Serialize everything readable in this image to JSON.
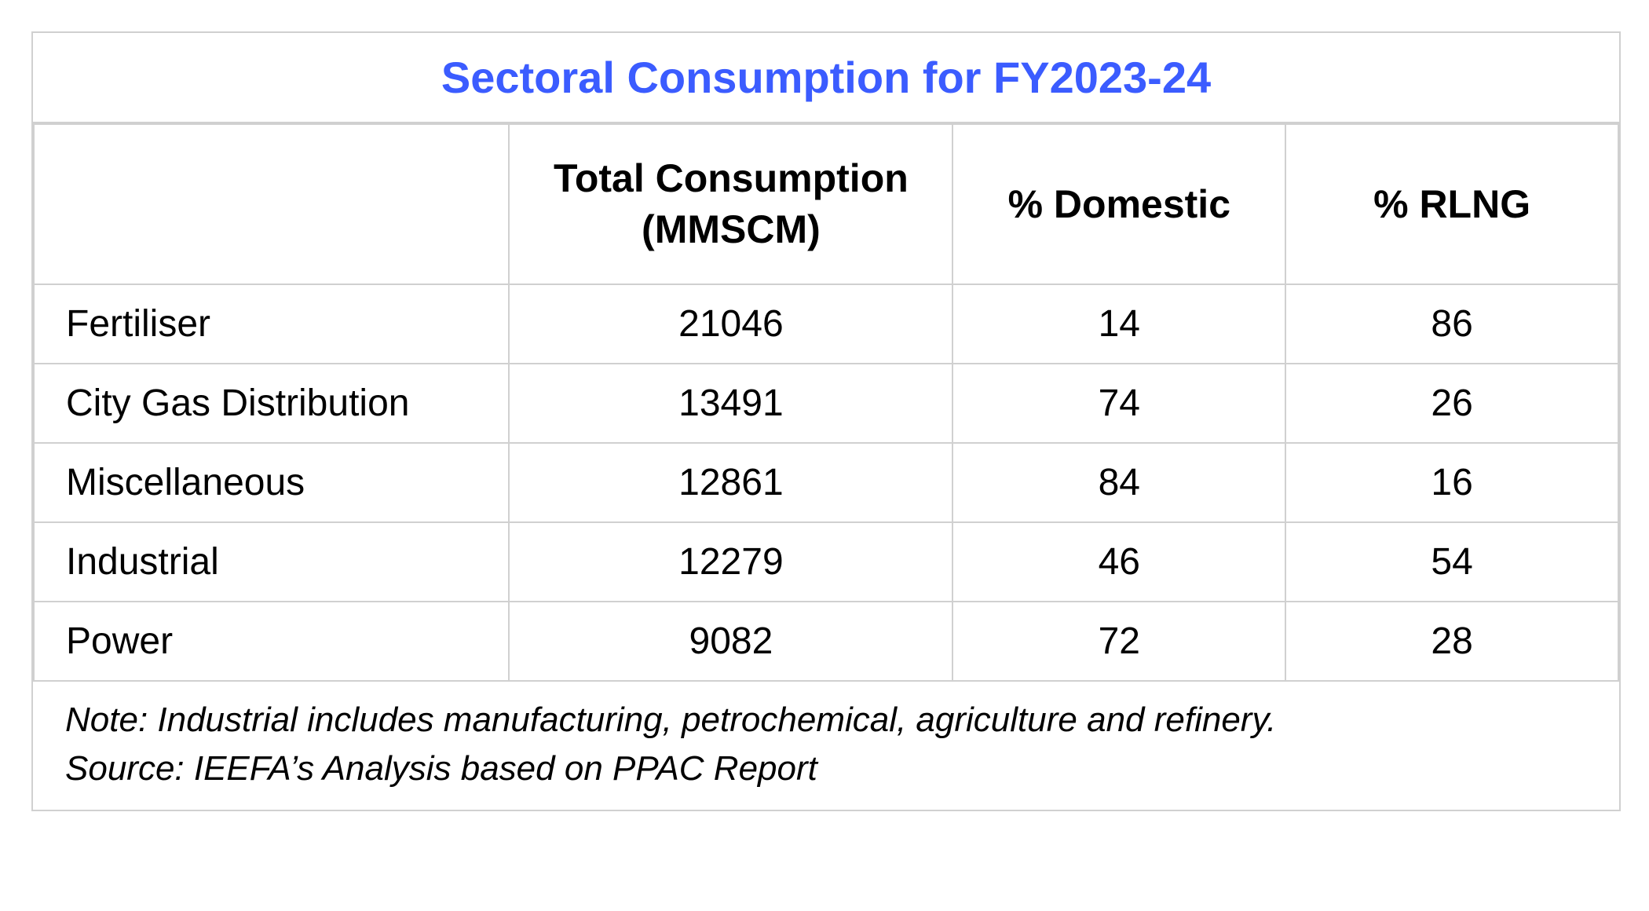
{
  "table": {
    "type": "table",
    "title": "Sectoral Consumption for FY2023-24",
    "title_color": "#3b5cff",
    "title_fontsize": 56,
    "title_fontweight": "bold",
    "border_color": "#d0d0d0",
    "background_color": "#ffffff",
    "header_fontsize": 50,
    "header_fontweight": "bold",
    "cell_fontsize": 48,
    "cell_color": "#000000",
    "footer_fontsize": 44,
    "footer_fontstyle": "italic",
    "columns": [
      {
        "label": "",
        "align": "left",
        "width_pct": 30
      },
      {
        "label": "Total Consumption (MMSCM)",
        "align": "center",
        "width_pct": 28
      },
      {
        "label": "% Domestic",
        "align": "center",
        "width_pct": 21
      },
      {
        "label": "% RLNG",
        "align": "center",
        "width_pct": 21
      }
    ],
    "rows": [
      {
        "sector": "Fertiliser",
        "total": "21046",
        "domestic": "14",
        "rlng": "86"
      },
      {
        "sector": "City Gas Distribution",
        "total": "13491",
        "domestic": "74",
        "rlng": "26"
      },
      {
        "sector": "Miscellaneous",
        "total": "12861",
        "domestic": "84",
        "rlng": "16"
      },
      {
        "sector": "Industrial",
        "total": "12279",
        "domestic": "46",
        "rlng": "54"
      },
      {
        "sector": "Power",
        "total": "9082",
        "domestic": "72",
        "rlng": "28"
      }
    ],
    "footer_note": "Note: Industrial includes manufacturing, petrochemical, agriculture and refinery.",
    "footer_source": "Source: IEEFA’s Analysis based on PPAC Report"
  }
}
